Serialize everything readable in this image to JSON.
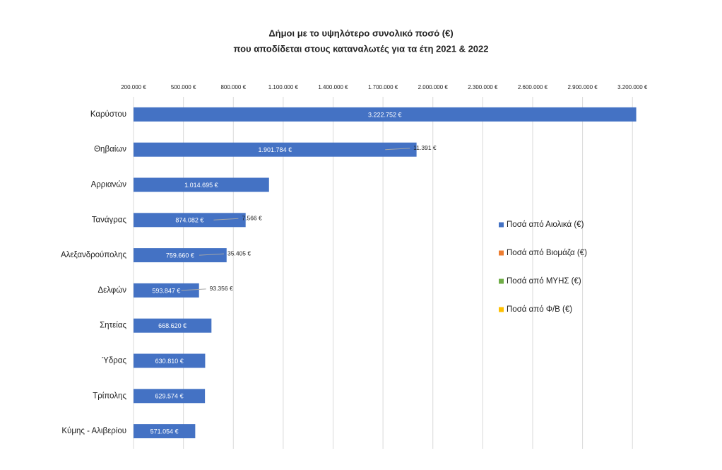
{
  "chart_data": {
    "type": "stacked-barh",
    "title": [
      "Δήμοι με το υψηλότερο συνολικό ποσό (€)",
      "που αποδίδεται στους καταναλωτές για τα έτη 2021 & 2022"
    ],
    "categories": [
      "Καρύστου",
      "Θηβαίων",
      "Αρριανών",
      "Τανάγρας",
      "Αλεξανδρούπολης",
      "Δελφών",
      "Σητείας",
      "Ύδρας",
      "Τρίπολης",
      "Κύμης - Αλιβερίου"
    ],
    "series": [
      {
        "name": "Ποσά από Αιολικά  (€)",
        "color": "#4472c4",
        "values": [
          3222752,
          1901784,
          1014695,
          874082,
          759660,
          593847,
          668620,
          630810,
          629574,
          571054
        ],
        "value_labels": [
          "3.222.752 €",
          "1.901.784 €",
          "1.014.695 €",
          "874.082 €",
          "759.660 €",
          "593.847 €",
          "668.620 €",
          "630.810 €",
          "629.574 €",
          "571.054 €"
        ]
      },
      {
        "name": "Ποσά από Βιομάζα (€)",
        "color": "#ed7d31",
        "values": [
          null,
          11391,
          null,
          null,
          35405,
          null,
          null,
          null,
          null,
          null
        ],
        "value_labels": [
          null,
          "11.391 €",
          null,
          null,
          "35.405 €",
          null,
          null,
          null,
          null,
          null
        ]
      },
      {
        "name": "Ποσά από ΜΥΗΣ (€)",
        "color": "#70ad47",
        "values": [
          null,
          null,
          null,
          7566,
          null,
          93356,
          null,
          null,
          null,
          null
        ],
        "value_labels": [
          null,
          null,
          null,
          "7.566 €",
          null,
          "93.356 €",
          null,
          null,
          null,
          null
        ]
      },
      {
        "name": "Ποσά από Φ/Β (€)",
        "color": "#ffc000",
        "values": [
          null,
          null,
          null,
          null,
          null,
          null,
          null,
          null,
          null,
          null
        ]
      }
    ],
    "xlim": [
      200000,
      3250000
    ],
    "xticks": [
      {
        "value": 200000,
        "label": "200.000 €"
      },
      {
        "value": 500000,
        "label": "500.000 €"
      },
      {
        "value": 800000,
        "label": "800.000 €"
      },
      {
        "value": 1100000,
        "label": "1.100.000 €"
      },
      {
        "value": 1400000,
        "label": "1.400.000 €"
      },
      {
        "value": 1700000,
        "label": "1.700.000 €"
      },
      {
        "value": 2000000,
        "label": "2.000.000 €"
      },
      {
        "value": 2300000,
        "label": "2.300.000 €"
      },
      {
        "value": 2600000,
        "label": "2.600.000 €"
      },
      {
        "value": 2900000,
        "label": "2.900.000 €"
      },
      {
        "value": 3200000,
        "label": "3.200.000 €"
      }
    ],
    "grid": true,
    "legend": "right"
  }
}
